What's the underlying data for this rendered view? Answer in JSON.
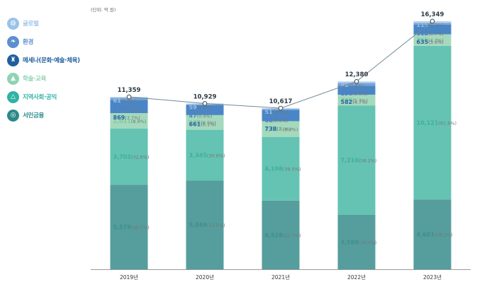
{
  "chart_data": {
    "type": "bar",
    "stacked": true,
    "unit_label": "(단위: 억 원)",
    "categories": [
      "2019년",
      "2020년",
      "2021년",
      "2022년",
      "2023년"
    ],
    "totals": [
      11359,
      10929,
      10617,
      12380,
      16349
    ],
    "totals_text": [
      "11,359",
      "10,929",
      "10,617",
      "12,380",
      "16,349"
    ],
    "ylim": [
      0,
      16349
    ],
    "series": [
      {
        "key": "seomin",
        "name": "서민금융",
        "color": "#559e9d",
        "text_color": "#3e8f8e",
        "values": [
          5579,
          5849,
          4528,
          3589,
          4601
        ],
        "value_text": [
          "5,579",
          "5,849",
          "4,528",
          "3,589",
          "4,601"
        ],
        "pct_text": [
          "(49.1%)",
          "(53.5%)",
          "(42.7%)",
          "(29.0%)",
          "(28.1%)"
        ]
      },
      {
        "key": "jiyeok",
        "name": "지역사회·공익",
        "color": "#64c3b3",
        "text_color": "#3fae9e",
        "values": [
          3702,
          3345,
          4198,
          7210,
          10121
        ],
        "value_text": [
          "3,702",
          "3,345",
          "4,198",
          "7,210",
          "10,121"
        ],
        "pct_text": [
          "(32.6%)",
          "(30.6%)",
          "(39.5%)",
          "(58.2%)",
          "(61.9%)"
        ]
      },
      {
        "key": "haksul",
        "name": "학술·교육",
        "color": "#a4d9bd",
        "text_color": "#7cc7a0",
        "values": [
          1011,
          968,
          1034,
          708,
          765
        ],
        "value_text": [
          "1,011",
          "968",
          "1,034",
          "708",
          "765"
        ],
        "pct_text": [
          "(8.9%)",
          "(8.9%)",
          "(9.7%)",
          "(5.7%)",
          "(4.7%)"
        ]
      },
      {
        "key": "mesena",
        "name": "메세나(문화·예술·체육)",
        "color": "#4a86c5",
        "text_color": "#2a63a6",
        "values": [
          869,
          661,
          738,
          582,
          635
        ],
        "value_text": [
          "869",
          "661",
          "738",
          "582",
          "635"
        ],
        "pct_text": [
          "(7.7%)",
          "(6.1%)",
          "(7.0%)",
          "(4.7%)",
          "(3.9%)"
        ]
      },
      {
        "key": "hwangyeong",
        "name": "환경",
        "color": "#7ba2d6",
        "text_color": "#4f7fc4",
        "values": [
          137,
          47,
          68,
          196,
          112
        ],
        "value_text": [
          "137",
          "47",
          "68",
          "196",
          "112"
        ],
        "pct_text": [
          "(1.2%)",
          "(0.4%)",
          "(0.6%)",
          "(1.6%)",
          "(0.7%)"
        ]
      },
      {
        "key": "global",
        "name": "글로벌",
        "color": "#b7d3ef",
        "text_color": "#9bbfe6",
        "values": [
          61,
          59,
          51,
          95,
          115
        ],
        "value_text": [
          "61",
          "59",
          "51",
          "95",
          "115"
        ],
        "pct_text": [
          "(0.5%)",
          "(0.5%)",
          "(0.5%)",
          "(0.8%)",
          "(0.7%)"
        ]
      }
    ],
    "legend": [
      {
        "key": "global",
        "label": "글로벌",
        "icon": "globe-icon",
        "glyph": "◍",
        "color": "#9bc3e8"
      },
      {
        "key": "hwangyeong",
        "label": "환경",
        "icon": "leaf-icon",
        "glyph": "❧",
        "color": "#5c8fcf"
      },
      {
        "key": "mesena",
        "label": "메세나(문화·예술·체육)",
        "icon": "trophy-icon",
        "glyph": "♜",
        "color": "#1f5f9e"
      },
      {
        "key": "haksul",
        "label": "학술·교육",
        "icon": "graduation-cap-icon",
        "glyph": "▲",
        "color": "#8fd3b3"
      },
      {
        "key": "jiyeok",
        "label": "지역사회·공익",
        "icon": "community-icon",
        "glyph": "△",
        "color": "#2fb3a5"
      },
      {
        "key": "seomin",
        "label": "서민금융",
        "icon": "coins-icon",
        "glyph": "◎",
        "color": "#2a8a89"
      }
    ],
    "line": {
      "color": "#6f8a95",
      "point_fill": "#ffffff"
    },
    "label_color_dark": "#2b3a44",
    "axis_color": "#999999",
    "grid": false
  }
}
